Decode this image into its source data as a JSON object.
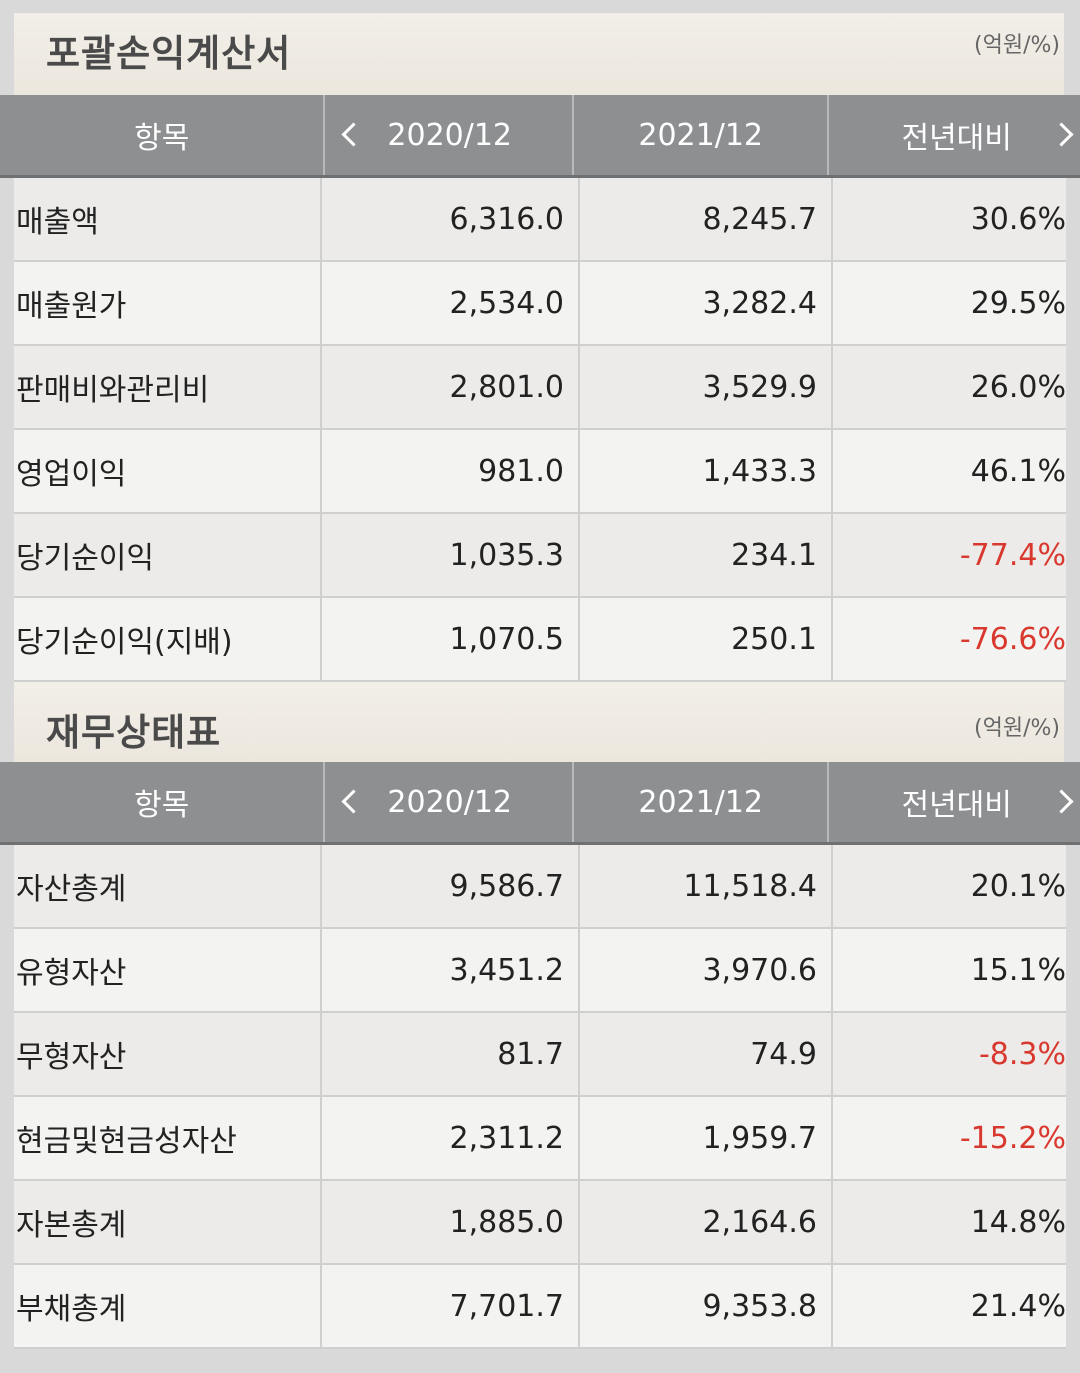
{
  "income": {
    "title": "포괄손익계산서",
    "unit": "(억원/%)",
    "headers": [
      "항목",
      "2020/12",
      "2021/12",
      "전년대비"
    ],
    "rows": [
      {
        "item": "매출액",
        "y2020": "6,316.0",
        "y2021": "8,245.7",
        "yoy": "30.6%",
        "neg": false
      },
      {
        "item": "매출원가",
        "y2020": "2,534.0",
        "y2021": "3,282.4",
        "yoy": "29.5%",
        "neg": false
      },
      {
        "item": "판매비와관리비",
        "y2020": "2,801.0",
        "y2021": "3,529.9",
        "yoy": "26.0%",
        "neg": false
      },
      {
        "item": "영업이익",
        "y2020": "981.0",
        "y2021": "1,433.3",
        "yoy": "46.1%",
        "neg": false
      },
      {
        "item": "당기순이익",
        "y2020": "1,035.3",
        "y2021": "234.1",
        "yoy": "-77.4%",
        "neg": true
      },
      {
        "item": "당기순이익(지배)",
        "y2020": "1,070.5",
        "y2021": "250.1",
        "yoy": "-76.6%",
        "neg": true
      }
    ]
  },
  "balance": {
    "title": "재무상태표",
    "unit": "(억원/%)",
    "headers": [
      "항목",
      "2020/12",
      "2021/12",
      "전년대비"
    ],
    "rows": [
      {
        "item": "자산총계",
        "y2020": "9,586.7",
        "y2021": "11,518.4",
        "yoy": "20.1%",
        "neg": false
      },
      {
        "item": "유형자산",
        "y2020": "3,451.2",
        "y2021": "3,970.6",
        "yoy": "15.1%",
        "neg": false
      },
      {
        "item": "무형자산",
        "y2020": "81.7",
        "y2021": "74.9",
        "yoy": "-8.3%",
        "neg": true
      },
      {
        "item": "현금및현금성자산",
        "y2020": "2,311.2",
        "y2021": "1,959.7",
        "yoy": "-15.2%",
        "neg": true
      },
      {
        "item": "자본총계",
        "y2020": "1,885.0",
        "y2021": "2,164.6",
        "yoy": "14.8%",
        "neg": false
      },
      {
        "item": "부채총계",
        "y2020": "7,701.7",
        "y2021": "9,353.8",
        "yoy": "21.4%",
        "neg": false
      }
    ]
  },
  "colors": {
    "header_bg": "#8e8f91",
    "negative": "#d9382e",
    "section_bg": "#ece7dd"
  }
}
